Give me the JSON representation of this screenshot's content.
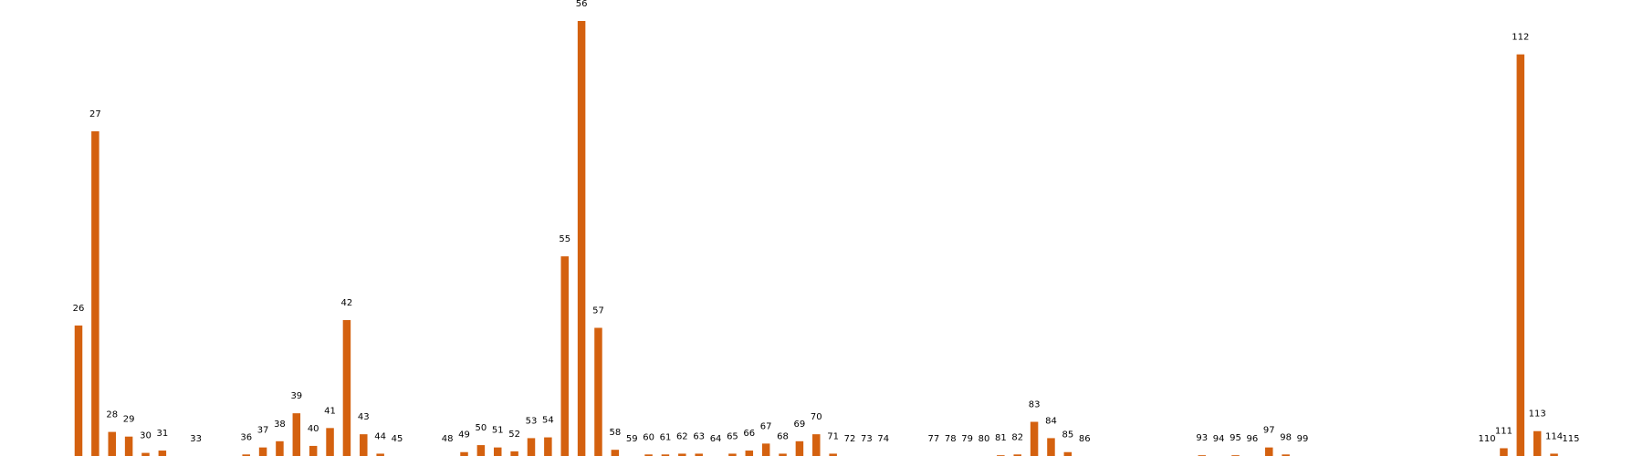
{
  "chart_data": {
    "type": "bar",
    "title": "",
    "xlabel": "",
    "ylabel": "",
    "bar_color": "#d4610f",
    "grid": false,
    "axes_visible": false,
    "ylim": [
      0,
      56
    ],
    "categories": [
      26,
      27,
      28,
      29,
      30,
      31,
      33,
      36,
      37,
      38,
      39,
      40,
      41,
      42,
      43,
      44,
      45,
      48,
      49,
      50,
      51,
      52,
      53,
      54,
      55,
      56,
      57,
      58,
      59,
      60,
      61,
      62,
      63,
      64,
      65,
      66,
      67,
      68,
      69,
      70,
      71,
      72,
      73,
      74,
      77,
      78,
      79,
      80,
      81,
      82,
      83,
      84,
      85,
      86,
      93,
      94,
      95,
      96,
      97,
      98,
      99,
      110,
      111,
      112,
      113,
      114,
      115
    ],
    "x": [
      26,
      27,
      28,
      29,
      30,
      31,
      33,
      36,
      37,
      38,
      39,
      40,
      41,
      42,
      43,
      44,
      45,
      48,
      49,
      50,
      51,
      52,
      53,
      54,
      55,
      56,
      57,
      58,
      59,
      60,
      61,
      62,
      63,
      64,
      65,
      66,
      67,
      68,
      69,
      70,
      71,
      72,
      73,
      74,
      77,
      78,
      79,
      80,
      81,
      82,
      83,
      84,
      85,
      86,
      93,
      94,
      95,
      96,
      97,
      98,
      99,
      110,
      111,
      112,
      113,
      114,
      115
    ],
    "values": [
      16.8,
      41.8,
      3.1,
      2.5,
      0.4,
      0.7,
      0,
      0.2,
      1.1,
      1.9,
      5.5,
      1.3,
      3.6,
      17.5,
      2.8,
      0.3,
      0,
      0,
      0.5,
      1.4,
      1.1,
      0.6,
      2.3,
      2.4,
      25.7,
      56,
      16.5,
      0.8,
      0,
      0.2,
      0.2,
      0.3,
      0.3,
      0,
      0.3,
      0.7,
      1.6,
      0.3,
      1.9,
      2.8,
      0.3,
      0,
      0,
      0,
      0,
      0,
      0,
      0,
      0.1,
      0.2,
      4.4,
      2.3,
      0.5,
      0,
      0.1,
      0,
      0.1,
      0,
      1.1,
      0.2,
      0,
      0,
      1.0,
      51.7,
      3.2,
      0.3,
      0
    ]
  }
}
